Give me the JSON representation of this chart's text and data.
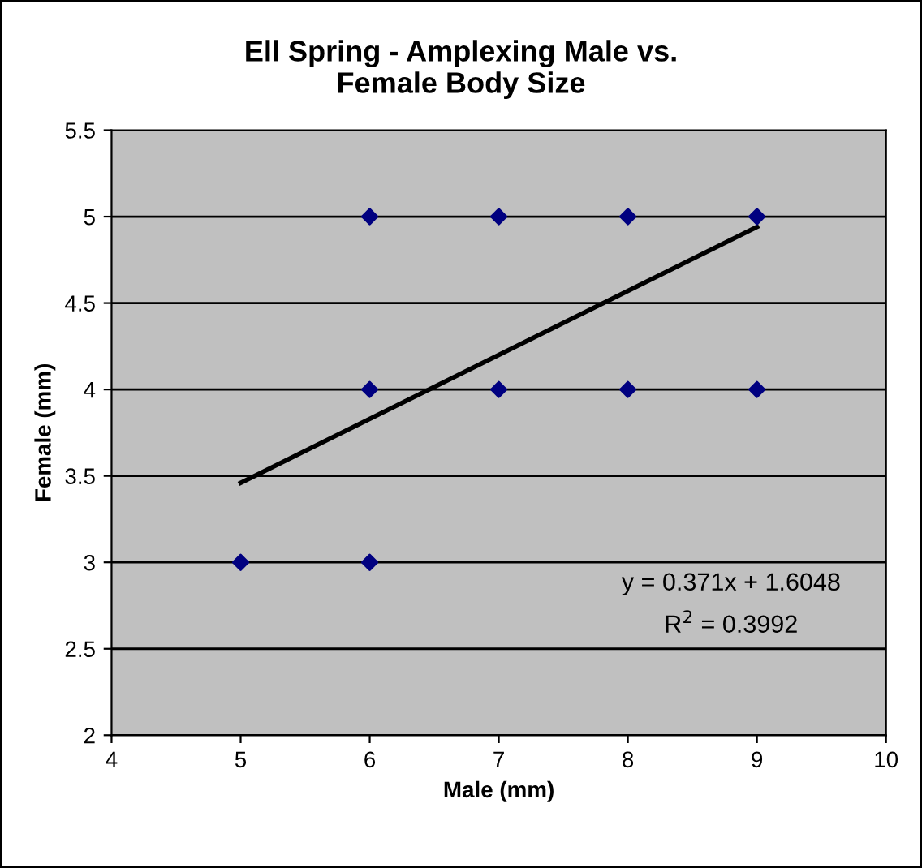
{
  "chart_data": {
    "type": "scatter",
    "title": "Ell Spring - Amplexing Male vs.\nFemale Body Size",
    "xlabel": "Male (mm)",
    "ylabel": "Female (mm)",
    "xlim": [
      4,
      10
    ],
    "xticks": [
      4,
      5,
      6,
      7,
      8,
      9,
      10
    ],
    "ylim": [
      2,
      5.5
    ],
    "yticks": [
      2,
      2.5,
      3,
      3.5,
      4,
      4.5,
      5,
      5.5
    ],
    "grid": "y",
    "legend": false,
    "series": [
      {
        "color": "#000080",
        "marker": "diamond",
        "x": [
          5,
          6,
          6,
          6,
          7,
          7,
          8,
          8,
          9,
          9
        ],
        "values": [
          3,
          3,
          4,
          5,
          4,
          5,
          4,
          5,
          4,
          5
        ]
      },
      {
        "type": "line",
        "color": "#000000",
        "line_style": "solid",
        "x": [
          5,
          9
        ],
        "values": [
          3.46,
          4.94
        ]
      }
    ],
    "annotations": [
      "y = 0.371x + 1.6048",
      "R$^{2}$ = 0.3992"
    ]
  }
}
